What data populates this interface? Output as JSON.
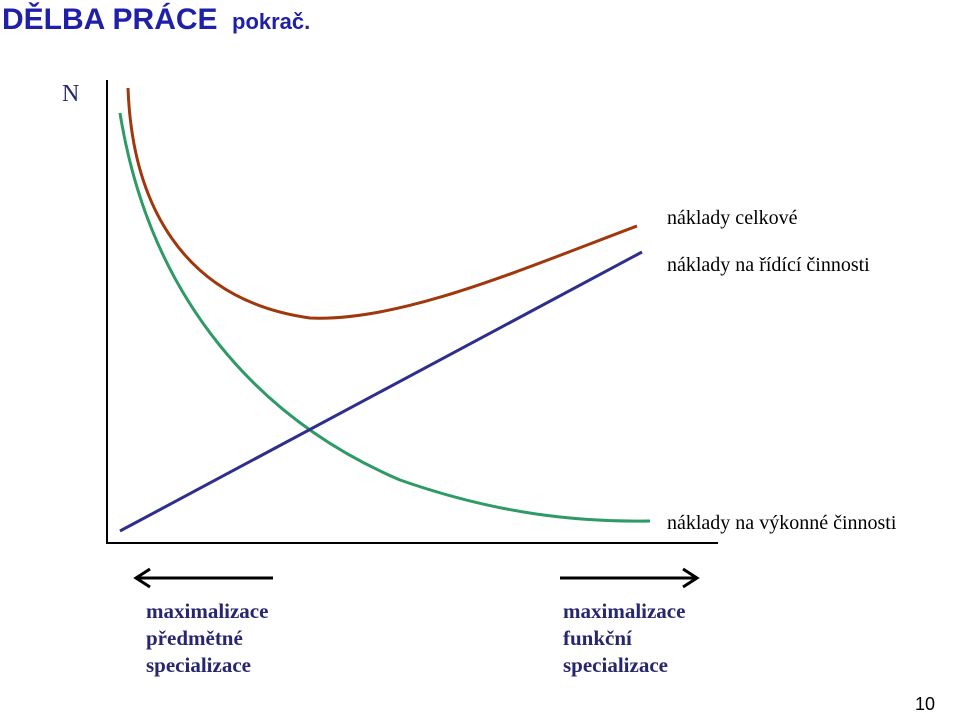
{
  "header": {
    "title": "DĚLBA PRÁCE",
    "subtitle": "pokrač."
  },
  "diagram": {
    "axis_label": "N",
    "curves": [
      {
        "label": "náklady celkové"
      },
      {
        "label": "náklady na řídící činnosti"
      },
      {
        "label": "náklady na výkonné činnosti"
      }
    ],
    "left_arrow": {
      "lines": [
        "maximalizace",
        "předmětné",
        "specializace"
      ]
    },
    "right_arrow": {
      "lines": [
        "maximalizace",
        "funkční",
        "specializace"
      ]
    }
  },
  "footer": {
    "page_number": "10"
  }
}
